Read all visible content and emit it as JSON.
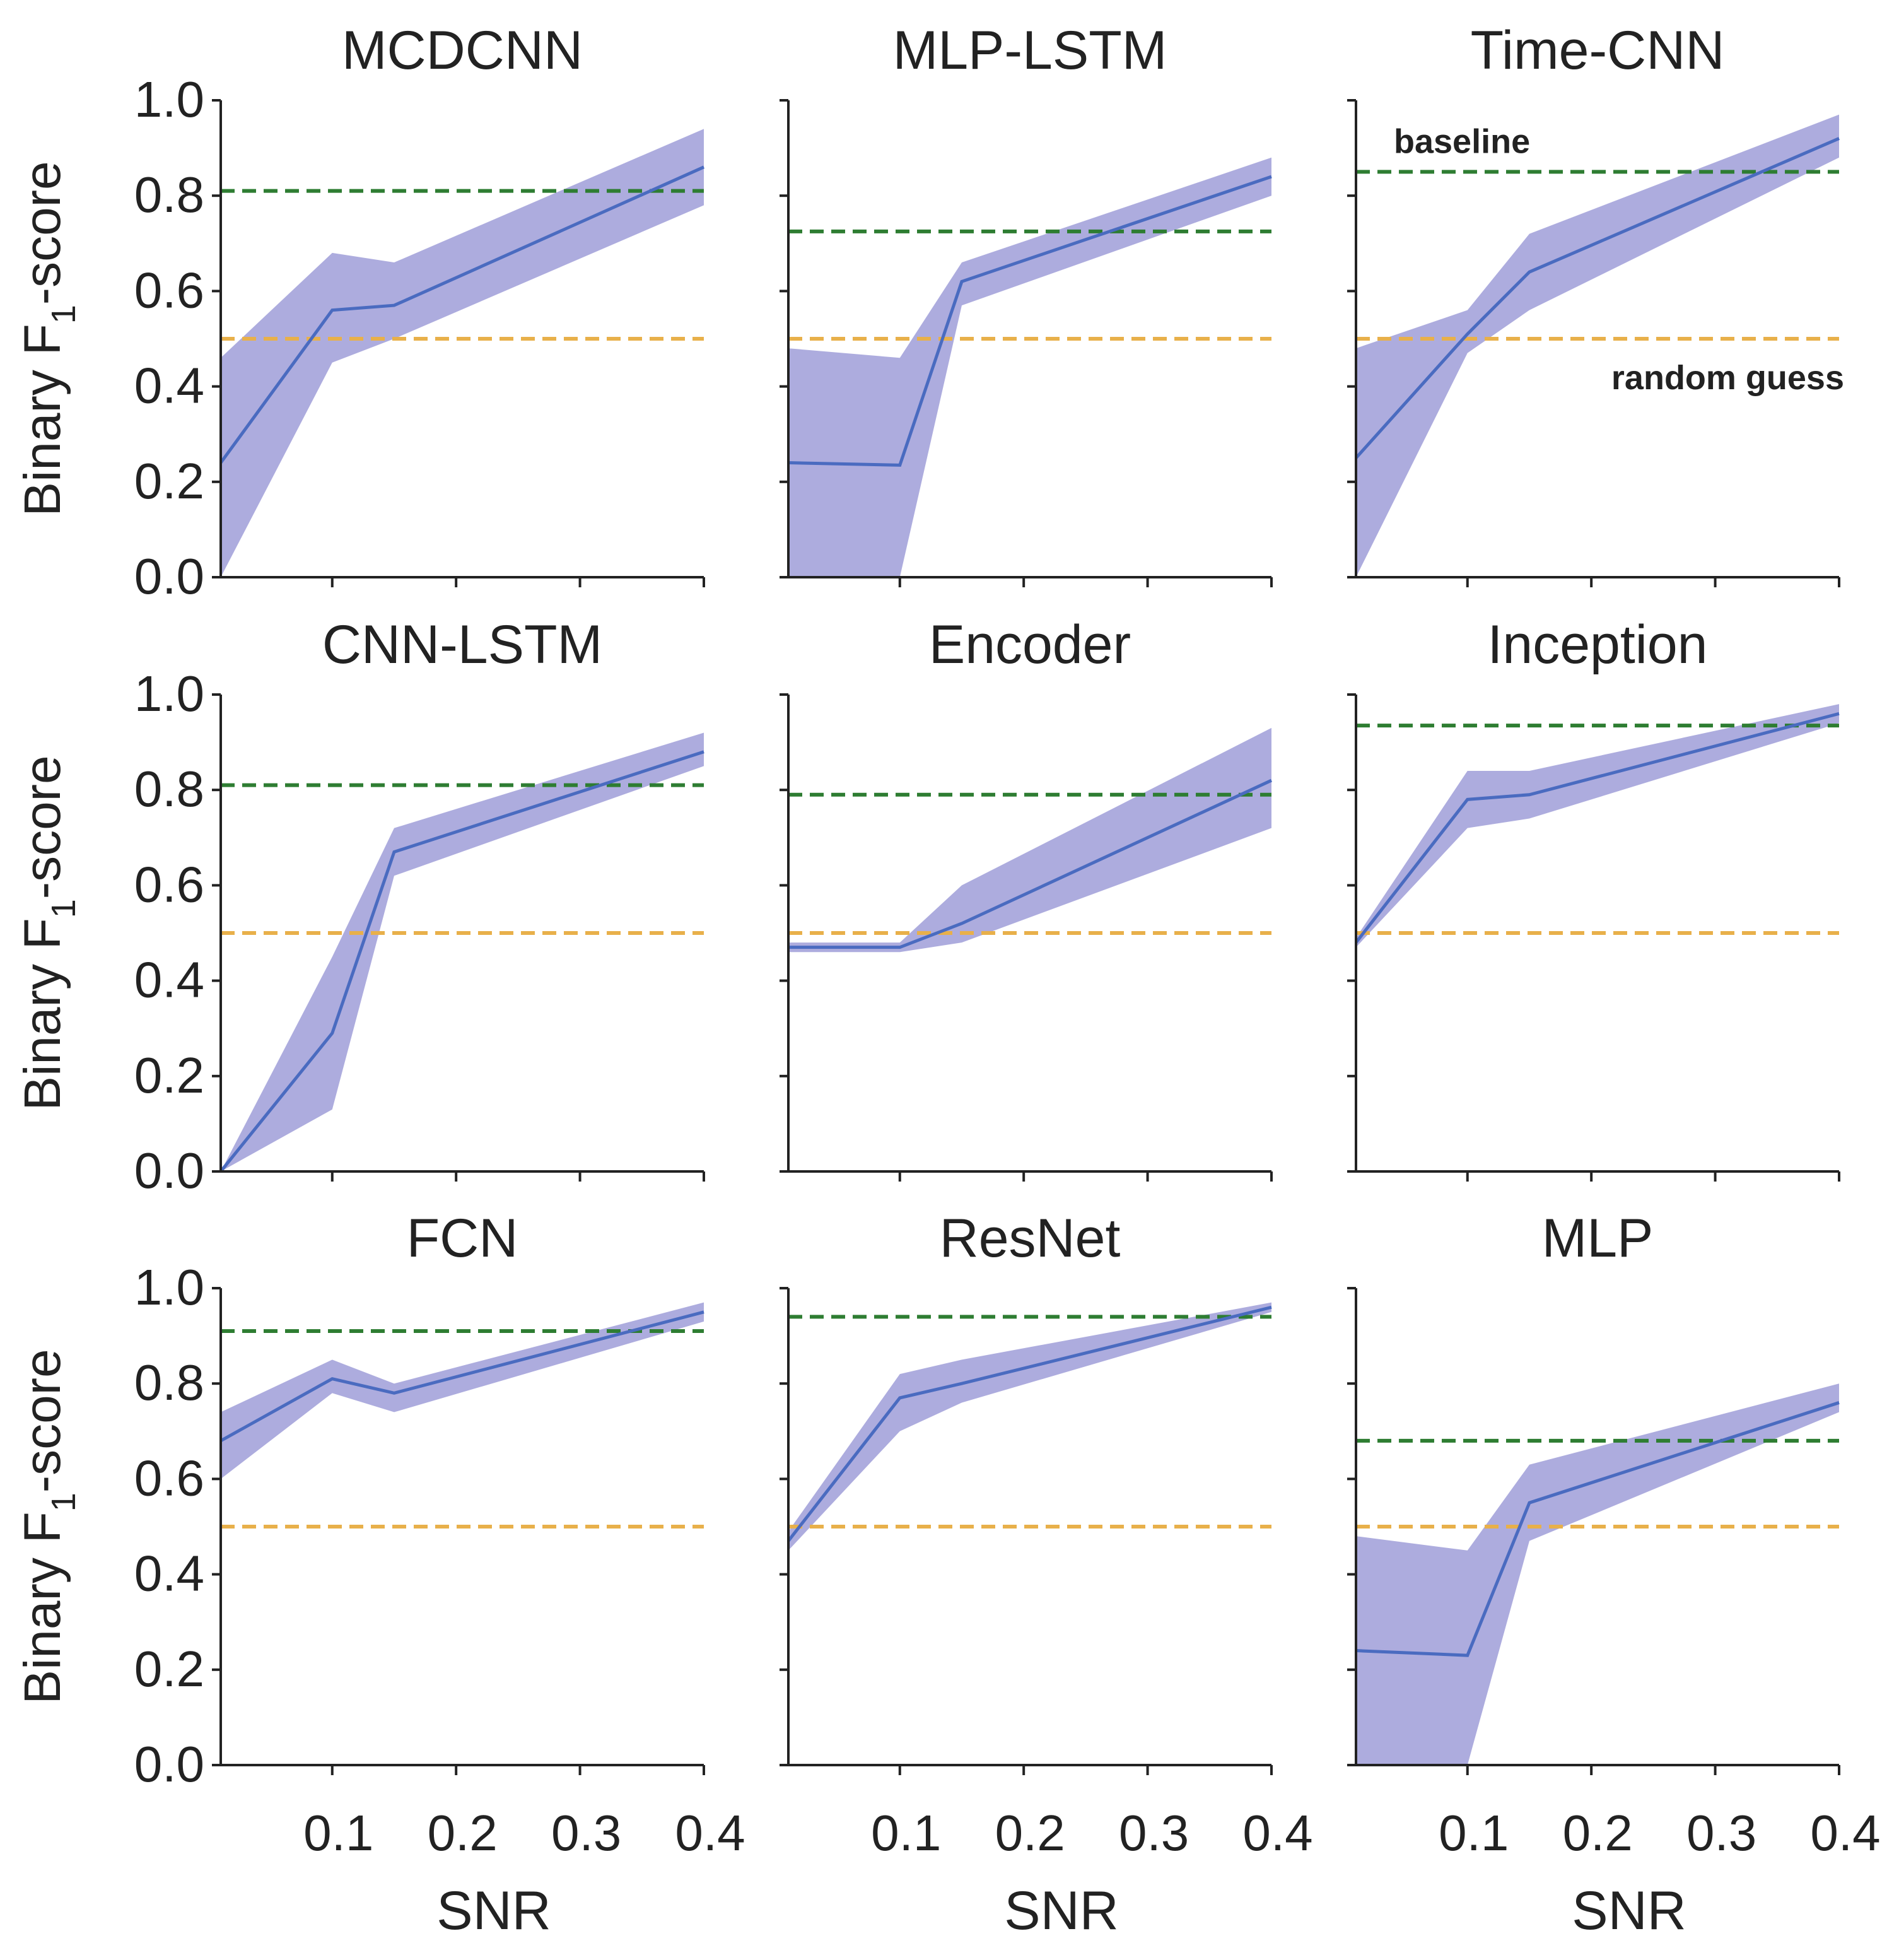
{
  "chart_data": {
    "type": "line",
    "ylabel_main": "Binary F",
    "ylabel_sub": "1",
    "ylabel_tail": "-score",
    "xlabel": "SNR",
    "xlim": [
      0.01,
      0.4
    ],
    "ylim": [
      0,
      1
    ],
    "xticks": [
      0.1,
      0.2,
      0.3,
      0.4
    ],
    "xtick_labels": [
      "0.1",
      "0.2",
      "0.3",
      "0.4"
    ],
    "yticks": [
      0,
      0.2,
      0.4,
      0.6,
      0.8,
      1.0
    ],
    "ytick_labels": [
      "0.0",
      "0.2",
      "0.4",
      "0.6",
      "0.8",
      "1.0"
    ],
    "annotations": {
      "baseline": "baseline",
      "random": "random guess"
    },
    "random_guess": 0.5,
    "colors": {
      "band": "#a9a8dc",
      "line": "#4a6bc0",
      "baseline": "#2e7d32",
      "random": "#e8b04a",
      "baseline_text": "#2e8b34",
      "random_text": "#d9964a"
    },
    "x": [
      0.01,
      0.1,
      0.15,
      0.4
    ],
    "panels": [
      {
        "title": "MCDCNN",
        "baseline": 0.81,
        "mean": [
          0.24,
          0.56,
          0.57,
          0.86
        ],
        "lower": [
          0.0,
          0.45,
          0.5,
          0.78
        ],
        "upper": [
          0.46,
          0.68,
          0.66,
          0.94
        ]
      },
      {
        "title": "MLP-LSTM",
        "baseline": 0.725,
        "mean": [
          0.24,
          0.235,
          0.62,
          0.84
        ],
        "lower": [
          0.0,
          0.0,
          0.57,
          0.8
        ],
        "upper": [
          0.48,
          0.46,
          0.66,
          0.88
        ]
      },
      {
        "title": "Time-CNN",
        "baseline": 0.85,
        "mean": [
          0.25,
          0.51,
          0.64,
          0.92
        ],
        "lower": [
          0.0,
          0.47,
          0.56,
          0.88
        ],
        "upper": [
          0.48,
          0.56,
          0.72,
          0.97
        ]
      },
      {
        "title": "CNN-LSTM",
        "baseline": 0.81,
        "mean": [
          0.0,
          0.29,
          0.67,
          0.88
        ],
        "lower": [
          0.0,
          0.13,
          0.62,
          0.85
        ],
        "upper": [
          0.0,
          0.45,
          0.72,
          0.92
        ]
      },
      {
        "title": "Encoder",
        "baseline": 0.79,
        "mean": [
          0.47,
          0.47,
          0.52,
          0.82
        ],
        "lower": [
          0.46,
          0.46,
          0.48,
          0.72
        ],
        "upper": [
          0.48,
          0.48,
          0.6,
          0.93
        ]
      },
      {
        "title": "Inception",
        "baseline": 0.935,
        "mean": [
          0.48,
          0.78,
          0.79,
          0.96
        ],
        "lower": [
          0.47,
          0.72,
          0.74,
          0.94
        ],
        "upper": [
          0.49,
          0.84,
          0.84,
          0.98
        ]
      },
      {
        "title": "FCN",
        "baseline": 0.91,
        "mean": [
          0.68,
          0.81,
          0.78,
          0.95
        ],
        "lower": [
          0.6,
          0.78,
          0.74,
          0.93
        ],
        "upper": [
          0.74,
          0.85,
          0.8,
          0.97
        ]
      },
      {
        "title": "ResNet",
        "baseline": 0.94,
        "mean": [
          0.47,
          0.77,
          0.8,
          0.96
        ],
        "lower": [
          0.45,
          0.7,
          0.76,
          0.95
        ],
        "upper": [
          0.49,
          0.82,
          0.85,
          0.97
        ]
      },
      {
        "title": "MLP",
        "baseline": 0.68,
        "mean": [
          0.24,
          0.23,
          0.55,
          0.76
        ],
        "lower": [
          0.0,
          0.0,
          0.47,
          0.74
        ],
        "upper": [
          0.48,
          0.45,
          0.63,
          0.8
        ]
      }
    ]
  }
}
